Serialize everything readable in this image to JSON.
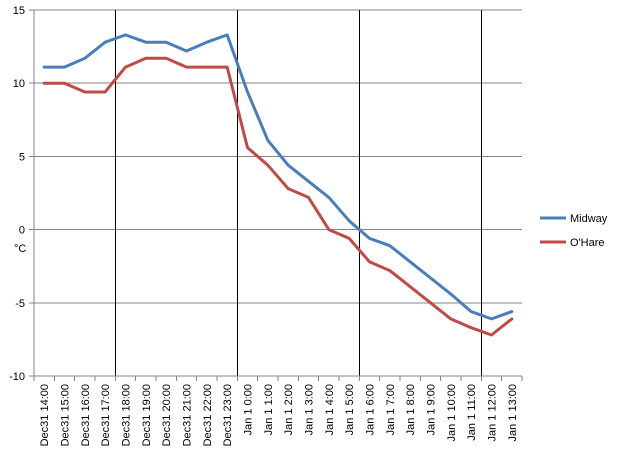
{
  "chart_data": {
    "type": "line",
    "title": "",
    "xlabel": "",
    "ylabel": "°C",
    "ylim": [
      -10,
      15
    ],
    "yticks": [
      -10,
      -5,
      0,
      5,
      10,
      15
    ],
    "grid": "horizontal",
    "legend_position": "right",
    "categories": [
      "Dec31 14:00",
      "Dec31 15:00",
      "Dec31 16:00",
      "Dec31 17:00",
      "Dec31 18:00",
      "Dec31 19:00",
      "Dec31 20:00",
      "Dec31 21:00",
      "Dec31 22:00",
      "Dec31 23:00",
      "Jan 1 0:00",
      "Jan 1 1:00",
      "Jan 1 2:00",
      "Jan 1 3:00",
      "Jan 1 4:00",
      "Jan 1 5:00",
      "Jan 1 6:00",
      "Jan 1 7:00",
      "Jan 1 8:00",
      "Jan 1 9:00",
      "Jan 1 10:00",
      "Jan 1 11:00",
      "Jan 1 12:00",
      "Jan 1 13:00"
    ],
    "x_tick_labels": [
      "Dec31 14:00",
      "Dec31 15:00",
      "Dec31 16:00",
      "Dec31 17:00",
      "Dec31 18:00",
      "Dec31 19:00",
      "Dec31 20:00",
      "Dec31 21:00",
      "Dec31 22:00",
      "Dec31 23:00",
      "Jan 1 0:00",
      "Jan 1 1:00",
      "Jan 1 2:00",
      "Jan 1 3:00",
      "Jan 1 4:00",
      "Jan 1 5:00",
      "Jan 1 6:00",
      "Jan 1 7:00",
      "Jan 1 8:00",
      "Jan 1 9:00",
      "Jan 1 10:00",
      "Jan 1 11:00",
      "Jan 1 12:00",
      "Jan 1 13:00"
    ],
    "vertical_markers_after_index": [
      3,
      9,
      15,
      21
    ],
    "series": [
      {
        "name": "Midway",
        "color": "#4a7ebb",
        "values": [
          11.1,
          11.1,
          11.7,
          12.8,
          13.3,
          12.8,
          12.8,
          12.2,
          12.8,
          13.3,
          9.4,
          6.1,
          4.4,
          3.3,
          2.2,
          0.6,
          -0.6,
          -1.1,
          -2.2,
          -3.3,
          -4.4,
          -5.6,
          -6.1,
          -5.6
        ]
      },
      {
        "name": "O'Hare",
        "color": "#be4b48",
        "values": [
          10.0,
          10.0,
          9.4,
          9.4,
          11.1,
          11.7,
          11.7,
          11.1,
          11.1,
          11.1,
          5.6,
          4.4,
          2.8,
          2.2,
          0.0,
          -0.6,
          -2.2,
          -2.8,
          -3.9,
          -5.0,
          -6.1,
          -6.7,
          -7.2,
          -6.1
        ]
      }
    ]
  }
}
